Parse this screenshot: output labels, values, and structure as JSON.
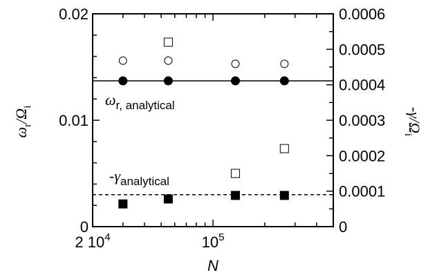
{
  "chart_data": {
    "type": "scatter",
    "title": "",
    "xlabel": "N",
    "x_scale": "log",
    "xlim": [
      20000,
      500000
    ],
    "x_tick_labels": [
      {
        "value": 20000,
        "label": "2 10",
        "sup": "4"
      },
      {
        "value": 100000,
        "label": "10",
        "sup": "5"
      }
    ],
    "ylabel_left": {
      "main": "ω",
      "sub": "r",
      "slash": "/Ω",
      "sub2": "i"
    },
    "ylabel_right": {
      "main": "-γ/Ω",
      "sub": "i"
    },
    "ylim_left": [
      0,
      0.02
    ],
    "ylim_right": [
      0,
      0.0006
    ],
    "yticks_left": [
      "0",
      "0.01",
      "0.02"
    ],
    "yticks_right": [
      "0",
      "0.0001",
      "0.0002",
      "0.0003",
      "0.0004",
      "0.0005",
      "0.0006"
    ],
    "grid": false,
    "series": [
      {
        "marker": "filled-circle",
        "axis": "left",
        "x": [
          30000,
          55000,
          135000,
          260000
        ],
        "y": [
          0.0137,
          0.0137,
          0.0137,
          0.0137
        ]
      },
      {
        "marker": "open-circle",
        "axis": "left",
        "x": [
          30000,
          55000,
          135000,
          260000
        ],
        "y": [
          0.0156,
          0.0156,
          0.0153,
          0.0153
        ]
      },
      {
        "marker": "open-square",
        "axis": "right",
        "x": [
          55000,
          135000,
          260000
        ],
        "y": [
          0.00052,
          0.00015,
          0.00022
        ]
      },
      {
        "marker": "filled-square",
        "axis": "right",
        "x": [
          30000,
          55000,
          135000,
          260000
        ],
        "y": [
          6.4e-05,
          7.8e-05,
          8.8e-05,
          8.8e-05
        ]
      }
    ],
    "reference_lines": [
      {
        "style": "solid",
        "axis": "left",
        "y": 0.0137,
        "label": {
          "main": "ω",
          "sub": "r, analytical"
        }
      },
      {
        "style": "dashed",
        "axis": "right",
        "y": 9e-05,
        "label": {
          "prefix": "-",
          "main": "γ",
          "sub": "analytical"
        }
      }
    ]
  }
}
